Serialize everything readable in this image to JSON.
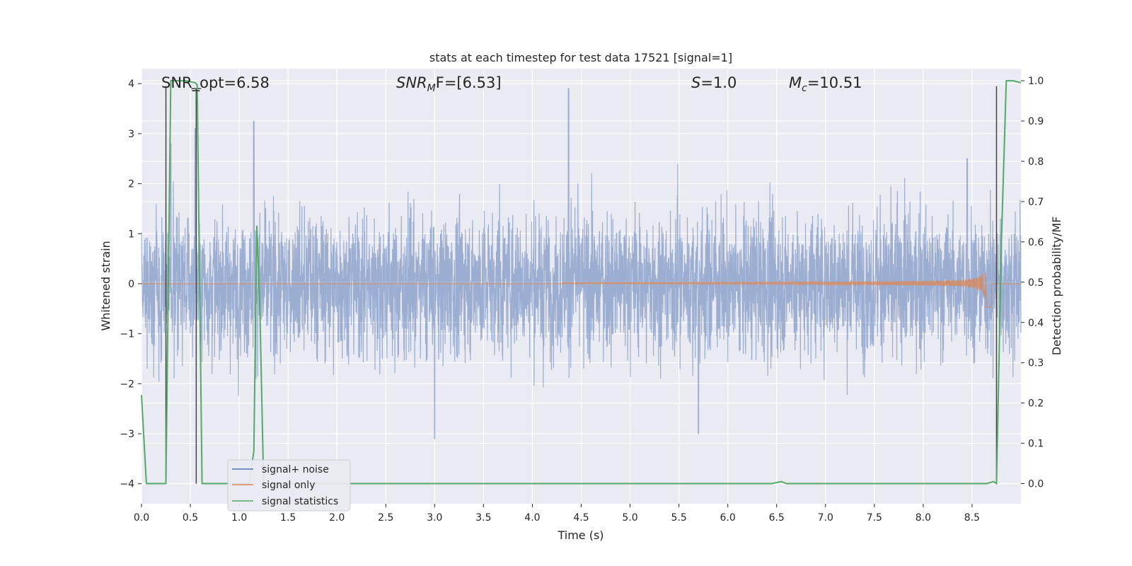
{
  "chart_data": {
    "type": "line",
    "title": "stats at each timestep for test data 17521 [signal=1]",
    "xlabel": "Time (s)",
    "ylabel": "Whitened strain",
    "ylabel_right": "Detection probability/MF",
    "xlim": [
      0,
      9.0
    ],
    "ylim": [
      -4.4,
      4.3
    ],
    "ylim_right": [
      -0.05,
      1.03
    ],
    "x_ticks": [
      0.0,
      0.5,
      1.0,
      1.5,
      2.0,
      2.5,
      3.0,
      3.5,
      4.0,
      4.5,
      5.0,
      5.5,
      6.0,
      6.5,
      7.0,
      7.5,
      8.0,
      8.5
    ],
    "y_ticks": [
      -4,
      -3,
      -2,
      -1,
      0,
      1,
      2,
      3,
      4
    ],
    "y_ticks_right": [
      0.0,
      0.1,
      0.2,
      0.3,
      0.4,
      0.5,
      0.6,
      0.7,
      0.8,
      0.9,
      1.0
    ],
    "grid": true,
    "legend_position": "lower-left",
    "annotations": {
      "snr_opt": "SNR_opt=6.58",
      "snr_mf_main": "SNR",
      "snr_mf_sub": "M",
      "snr_mf_rest": "F=[6.53]",
      "s_main": "S",
      "s_rest": "=1.0",
      "mc_main": "M",
      "mc_sub": "c",
      "mc_rest": "=10.51"
    },
    "series": [
      {
        "name": "signal+ noise",
        "color": "#4c72b0",
        "description_of_shape": "dense noise band, mostly within ±1.6, extremes to ±3",
        "envelope": {
          "typical": 1.6,
          "peaks": [
            [
              0.3,
              2.8
            ],
            [
              0.55,
              3.1
            ],
            [
              1.15,
              3.25
            ],
            [
              4.37,
              3.9
            ],
            [
              5.7,
              -3.0
            ],
            [
              3.0,
              -3.1
            ],
            [
              8.45,
              2.5
            ]
          ]
        }
      },
      {
        "name": "signal only",
        "color": "#dd8452",
        "chirp": {
          "start_x": 4.3,
          "peak_x": 8.65,
          "peak_amp": 0.75,
          "end_x": 8.7
        }
      },
      {
        "name": "signal statistics",
        "color": "#55a868",
        "axis": "right",
        "points": [
          [
            0.0,
            0.22
          ],
          [
            0.05,
            0.0
          ],
          [
            0.25,
            0.0
          ],
          [
            0.3,
            1.0
          ],
          [
            0.35,
            1.0
          ],
          [
            0.45,
            1.0
          ],
          [
            0.55,
            0.995
          ],
          [
            0.57,
            0.99
          ],
          [
            0.62,
            0.0
          ],
          [
            0.65,
            0.0
          ],
          [
            1.05,
            0.0
          ],
          [
            1.1,
            0.0
          ],
          [
            1.15,
            0.08
          ],
          [
            1.18,
            0.64
          ],
          [
            1.21,
            0.45
          ],
          [
            1.25,
            0.0
          ],
          [
            6.45,
            0.0
          ],
          [
            6.55,
            0.005
          ],
          [
            6.6,
            0.0
          ],
          [
            7.4,
            0.0
          ],
          [
            8.65,
            0.0
          ],
          [
            8.72,
            0.005
          ],
          [
            8.75,
            0.0
          ],
          [
            8.8,
            0.6
          ],
          [
            8.85,
            1.0
          ],
          [
            8.92,
            1.0
          ],
          [
            9.0,
            0.995
          ]
        ]
      }
    ],
    "markers": {
      "vertical_lines_x": [
        0.25,
        0.56,
        8.75
      ],
      "color": "#444444"
    }
  }
}
